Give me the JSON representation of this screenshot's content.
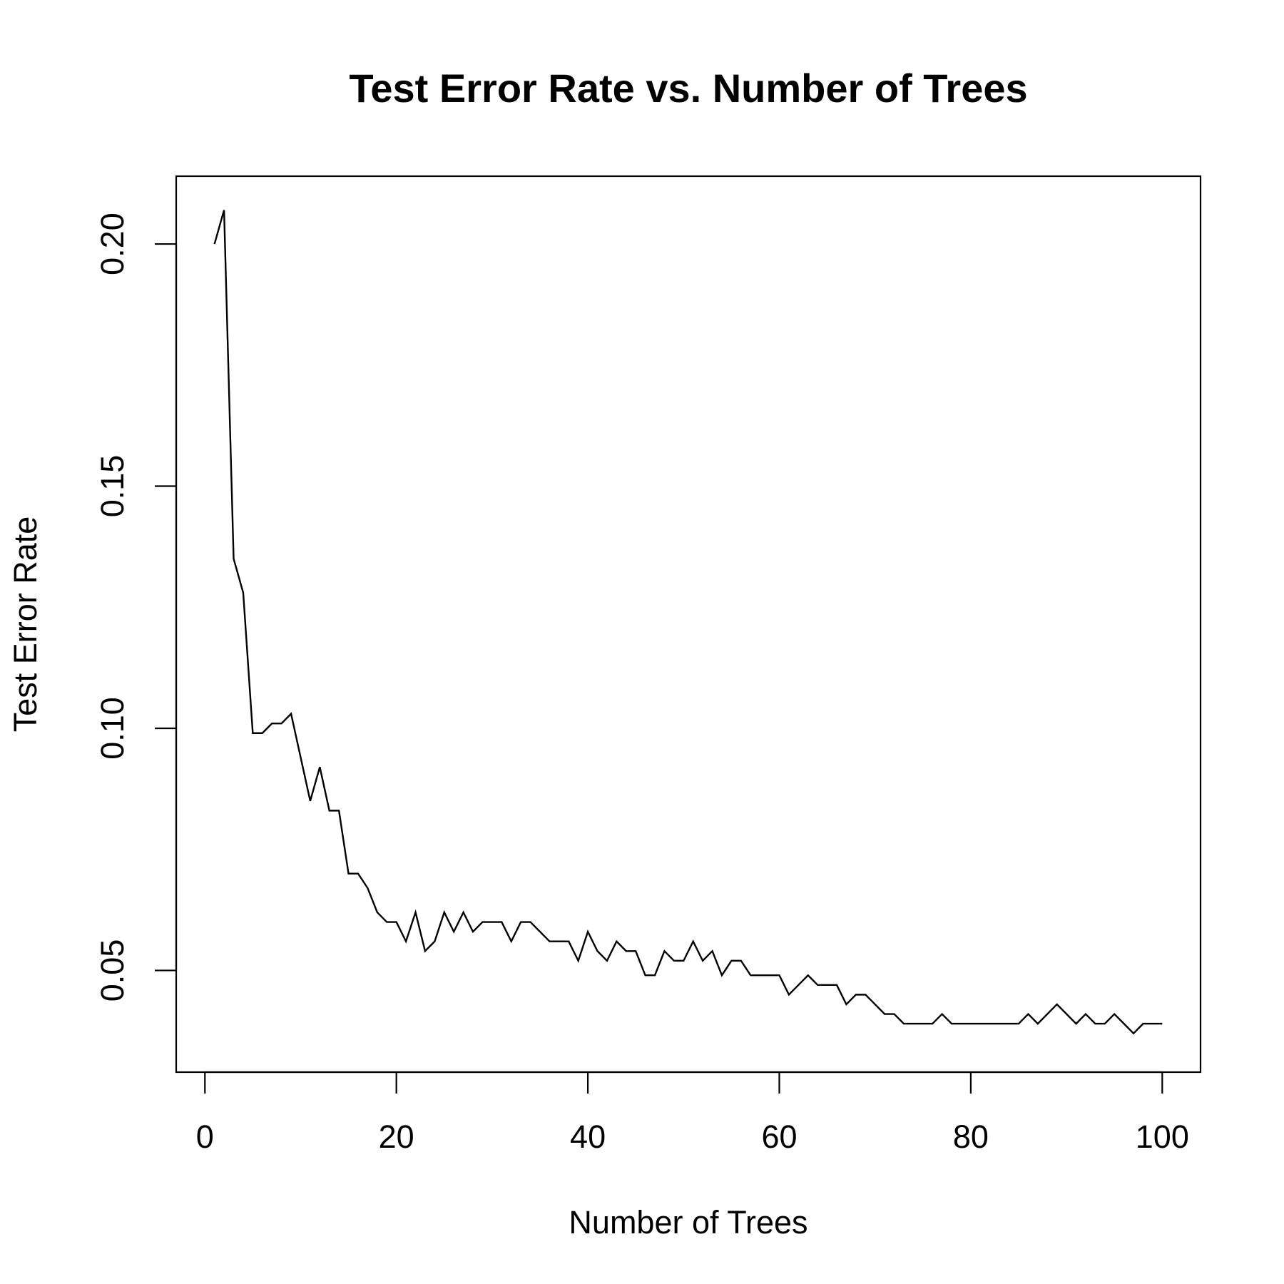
{
  "chart_data": {
    "type": "line",
    "title": "Test Error Rate vs. Number of Trees",
    "xlabel": "Number of Trees",
    "ylabel": "Test Error Rate",
    "xlim": [
      -3,
      104
    ],
    "ylim": [
      0.029,
      0.214
    ],
    "xticks": [
      0,
      20,
      40,
      60,
      80,
      100
    ],
    "yticks": [
      0.05,
      0.1,
      0.15,
      0.2
    ],
    "xtick_labels": [
      "0",
      "20",
      "40",
      "60",
      "80",
      "100"
    ],
    "ytick_labels": [
      "0.05",
      "0.10",
      "0.15",
      "0.20"
    ],
    "grid": false,
    "line_color": "#000000",
    "series": [
      {
        "x": [
          1,
          2,
          3,
          4,
          5,
          6,
          7,
          8,
          9,
          10,
          11,
          12,
          13,
          14,
          15,
          16,
          17,
          18,
          19,
          20,
          21,
          22,
          23,
          24,
          25,
          26,
          27,
          28,
          29,
          30,
          31,
          32,
          33,
          34,
          35,
          36,
          37,
          38,
          39,
          40,
          41,
          42,
          43,
          44,
          45,
          46,
          47,
          48,
          49,
          50,
          51,
          52,
          53,
          54,
          55,
          56,
          57,
          58,
          59,
          60,
          61,
          62,
          63,
          64,
          65,
          66,
          67,
          68,
          69,
          70,
          71,
          72,
          73,
          74,
          75,
          76,
          77,
          78,
          79,
          80,
          81,
          82,
          83,
          84,
          85,
          86,
          87,
          88,
          89,
          90,
          91,
          92,
          93,
          94,
          95,
          96,
          97,
          98,
          99,
          100
        ],
        "values": [
          0.2,
          0.207,
          0.135,
          0.128,
          0.099,
          0.099,
          0.101,
          0.101,
          0.103,
          0.094,
          0.085,
          0.092,
          0.083,
          0.083,
          0.07,
          0.07,
          0.067,
          0.062,
          0.06,
          0.06,
          0.056,
          0.062,
          0.054,
          0.056,
          0.062,
          0.058,
          0.062,
          0.058,
          0.06,
          0.06,
          0.06,
          0.056,
          0.06,
          0.06,
          0.058,
          0.056,
          0.056,
          0.056,
          0.052,
          0.058,
          0.054,
          0.052,
          0.056,
          0.054,
          0.054,
          0.049,
          0.049,
          0.054,
          0.052,
          0.052,
          0.056,
          0.052,
          0.054,
          0.049,
          0.052,
          0.052,
          0.049,
          0.049,
          0.049,
          0.049,
          0.045,
          0.047,
          0.049,
          0.047,
          0.047,
          0.047,
          0.043,
          0.045,
          0.045,
          0.043,
          0.041,
          0.041,
          0.039,
          0.039,
          0.039,
          0.039,
          0.041,
          0.039,
          0.039,
          0.039,
          0.039,
          0.039,
          0.039,
          0.039,
          0.039,
          0.041,
          0.039,
          0.041,
          0.043,
          0.041,
          0.039,
          0.041,
          0.039,
          0.039,
          0.041,
          0.039,
          0.037,
          0.039,
          0.039,
          0.039
        ]
      }
    ]
  }
}
